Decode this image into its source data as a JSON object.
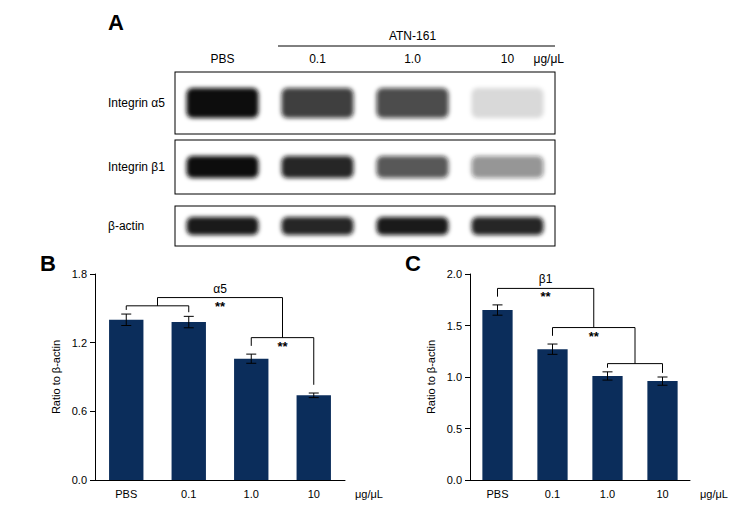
{
  "blot": {
    "panel_label": "A",
    "lanes": [
      "PBS",
      "0.1",
      "1.0",
      "10"
    ],
    "group": {
      "label": "ATN-161",
      "lanes": [
        1,
        2,
        3
      ]
    },
    "unit": "μg/μL",
    "rows": [
      {
        "label": "Integrin α5",
        "intensity": [
          1.0,
          0.8,
          0.75,
          0.15
        ]
      },
      {
        "label": "Integrin β1",
        "intensity": [
          1.0,
          0.9,
          0.7,
          0.45
        ]
      },
      {
        "label": "β-actin",
        "intensity": [
          0.95,
          0.9,
          0.95,
          0.9
        ]
      }
    ]
  },
  "chart_data": [
    {
      "panel_label": "B",
      "type": "bar",
      "title": "α5",
      "categories": [
        "PBS",
        "0.1",
        "1.0",
        "10"
      ],
      "values": [
        1.4,
        1.38,
        1.06,
        0.74
      ],
      "errors": [
        0.05,
        0.05,
        0.04,
        0.02
      ],
      "x_label": "μg/μL",
      "y_label": "Ratio to β-actin",
      "color": "#0b2d5b",
      "ylim": [
        0,
        1.8
      ],
      "yticks": [
        {
          "value": 0,
          "label": "0.0"
        },
        0.6,
        1.2,
        1.8
      ],
      "grid": false,
      "annotations": [
        {
          "text": "**",
          "groups": [
            [
              2
            ],
            [
              3
            ]
          ]
        },
        {
          "text": "**",
          "groups": [
            [
              0,
              1
            ],
            [
              2,
              3
            ]
          ]
        }
      ]
    },
    {
      "panel_label": "C",
      "type": "bar",
      "title": "β1",
      "categories": [
        "PBS",
        "0.1",
        "1.0",
        "10"
      ],
      "values": [
        1.65,
        1.27,
        1.01,
        0.96
      ],
      "errors": [
        0.05,
        0.05,
        0.04,
        0.04
      ],
      "x_label": "μg/μL",
      "y_label": "Ratio to β-actin",
      "color": "#0b2d5b",
      "ylim": [
        0,
        2.0
      ],
      "yticks": [
        {
          "value": 0,
          "label": "0.0"
        },
        0.5,
        {
          "value": 1,
          "label": "1.0"
        },
        1.5,
        {
          "value": 2,
          "label": "2.0"
        }
      ],
      "grid": false,
      "annotations": [
        {
          "text": "**",
          "groups": [
            [
              1
            ],
            [
              2,
              3
            ]
          ]
        },
        {
          "text": "**",
          "groups": [
            [
              0
            ],
            [
              1,
              2,
              3
            ]
          ]
        }
      ]
    }
  ]
}
